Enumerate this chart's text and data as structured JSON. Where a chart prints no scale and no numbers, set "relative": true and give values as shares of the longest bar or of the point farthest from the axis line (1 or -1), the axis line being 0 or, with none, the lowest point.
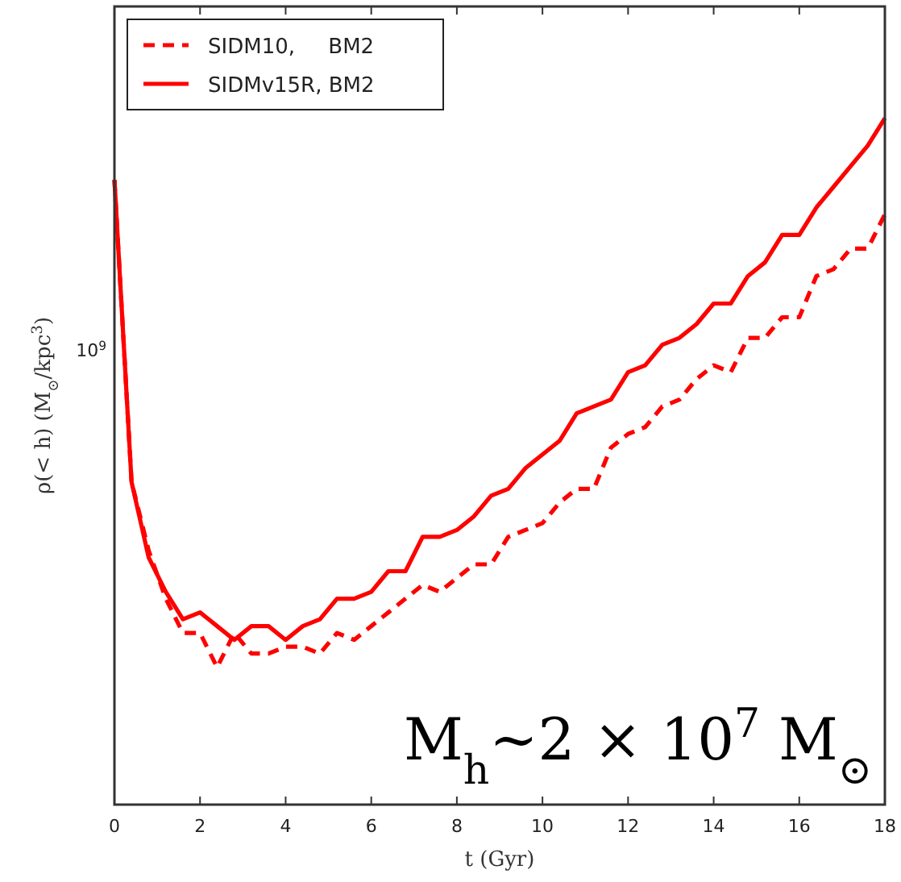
{
  "chart_data": {
    "type": "line",
    "xlabel": "t (Gyr)",
    "ylabel": "ρ(< h) (M$_{⊙}$/kpc$^{3}$)",
    "relative": true,
    "xlim": [
      0,
      18
    ],
    "xticks": [
      0,
      2,
      4,
      6,
      8,
      10,
      12,
      14,
      16,
      18
    ],
    "x": [
      0,
      0.4,
      0.8,
      1.2,
      1.6,
      2.0,
      2.4,
      2.8,
      3.2,
      3.6,
      4.0,
      4.4,
      4.8,
      5.2,
      5.6,
      6.0,
      6.4,
      6.8,
      7.2,
      7.6,
      8.0,
      8.4,
      8.8,
      9.2,
      9.6,
      10.0,
      10.4,
      10.8,
      11.2,
      11.6,
      12.0,
      12.4,
      12.8,
      13.2,
      13.6,
      14.0,
      14.4,
      14.8,
      15.2,
      15.6,
      16.0,
      16.4,
      16.8,
      17.2,
      17.6,
      18.0
    ],
    "legend": "top left",
    "series": [
      {
        "name": "SIDM10,     BM2",
        "color": "#ff0000",
        "line_style": "dashed",
        "values": [
          0.91,
          0.47,
          0.37,
          0.3,
          0.25,
          0.25,
          0.2,
          0.25,
          0.22,
          0.22,
          0.23,
          0.23,
          0.22,
          0.25,
          0.24,
          0.26,
          0.28,
          0.3,
          0.32,
          0.31,
          0.33,
          0.35,
          0.35,
          0.39,
          0.4,
          0.41,
          0.44,
          0.46,
          0.46,
          0.52,
          0.54,
          0.55,
          0.58,
          0.59,
          0.62,
          0.64,
          0.63,
          0.68,
          0.68,
          0.71,
          0.71,
          0.77,
          0.78,
          0.81,
          0.81,
          0.86
        ]
      },
      {
        "name": "SIDMv15R, BM2",
        "color": "#ff0000",
        "line_style": "solid",
        "values": [
          0.91,
          0.47,
          0.36,
          0.31,
          0.27,
          0.28,
          0.26,
          0.24,
          0.26,
          0.26,
          0.24,
          0.26,
          0.27,
          0.3,
          0.3,
          0.31,
          0.34,
          0.34,
          0.39,
          0.39,
          0.4,
          0.42,
          0.45,
          0.46,
          0.49,
          0.51,
          0.53,
          0.57,
          0.58,
          0.59,
          0.63,
          0.64,
          0.67,
          0.68,
          0.7,
          0.73,
          0.73,
          0.77,
          0.79,
          0.83,
          0.83,
          0.87,
          0.9,
          0.93,
          0.96,
          1
        ]
      }
    ],
    "annotations": [
      "10$^{9}$",
      "M$_{h}$~2 × 10$^{7}$ M$_{⊙}$"
    ]
  }
}
